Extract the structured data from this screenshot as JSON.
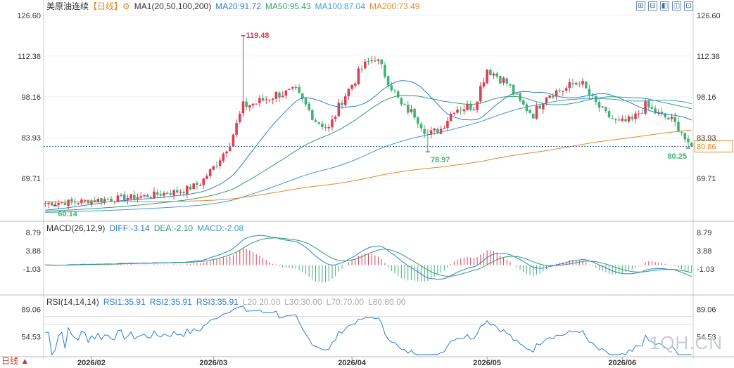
{
  "header": {
    "main": {
      "title": "美原油连续",
      "period": "【日线】",
      "gear": "⚙",
      "items": [
        {
          "label": "MA1(20,50,100,200)",
          "color": "#333333"
        },
        {
          "label": "MA20:91.72",
          "color": "#2a7fd4"
        },
        {
          "label": "MA50:95.43",
          "color": "#2e9e6a"
        },
        {
          "label": "MA100:87.04",
          "color": "#3d9bd6"
        },
        {
          "label": "MA200:73.49",
          "color": "#e08a2c"
        }
      ]
    },
    "macd": {
      "items": [
        {
          "label": "MACD(26,12,9)",
          "color": "#333333"
        },
        {
          "label": "DIFF:-3.14",
          "color": "#2a7fd4"
        },
        {
          "label": "DEA:-2.10",
          "color": "#2e9e6a"
        },
        {
          "label": "MACD:-2.08",
          "color": "#3d9bd6"
        }
      ]
    },
    "rsi": {
      "items": [
        {
          "label": "RSI(14,14,14)",
          "color": "#333333"
        },
        {
          "label": "RSI1:35.91",
          "color": "#2a7fd4"
        },
        {
          "label": "RSI2:35.91",
          "color": "#2a7fd4"
        },
        {
          "label": "RSI3:35.91",
          "color": "#2a7fd4"
        },
        {
          "label": "L20:20.00",
          "color": "#aaaaaa"
        },
        {
          "label": "L30:30.00",
          "color": "#aaaaaa"
        },
        {
          "label": "L70:70.00",
          "color": "#aaaaaa"
        },
        {
          "label": "L80:80.00",
          "color": "#aaaaaa"
        }
      ]
    }
  },
  "toolbar": [
    "⊞",
    "⊟",
    "◧",
    "◫",
    "⊡"
  ],
  "footer": {
    "label": "日线 ▲"
  },
  "watermark": "1QH.CN",
  "chart_data": {
    "type": "candlestick",
    "main": {
      "ylim": [
        55.5,
        128.5
      ],
      "yticks": [
        "126.60",
        "112.38",
        "98.16",
        "83.93",
        "69.71"
      ],
      "yvalues": [
        126.6,
        112.38,
        98.16,
        83.93,
        69.71
      ],
      "current_price": "80.86",
      "current_value": 80.86,
      "annotations": [
        {
          "label": "119.48",
          "value": 119.48,
          "index": 60,
          "color": "#e03c52"
        },
        {
          "label": "78.97",
          "value": 78.97,
          "index": 116,
          "color": "#3cb371"
        },
        {
          "label": "80.25",
          "value": 80.25,
          "index": 195,
          "color": "#3cb371"
        },
        {
          "label": "60.14",
          "value": 60.14,
          "index": 3,
          "color": "#3cb371"
        }
      ]
    },
    "macd": {
      "ylim": [
        -7.5,
        10.5
      ],
      "yticks": [
        "8.79",
        "3.88",
        "-1.03"
      ],
      "yvalues": [
        8.79,
        3.88,
        -1.03
      ]
    },
    "rsi": {
      "ylim": [
        32,
        100
      ],
      "yticks": [
        "89.06",
        "54.53"
      ],
      "yvalues": [
        89.06,
        54.53
      ]
    },
    "xticks": [
      {
        "label": "2026/02",
        "index": 14
      },
      {
        "label": "2026/03",
        "index": 51
      },
      {
        "label": "2026/04",
        "index": 93
      },
      {
        "label": "2026/05",
        "index": 134
      },
      {
        "label": "2026/06",
        "index": 175
      }
    ],
    "anchors": [
      [
        0,
        61
      ],
      [
        10,
        61.6
      ],
      [
        14,
        62
      ],
      [
        30,
        63.5
      ],
      [
        42,
        65.5
      ],
      [
        47,
        68
      ],
      [
        52,
        75
      ],
      [
        56,
        82
      ],
      [
        60,
        95
      ],
      [
        64,
        96
      ],
      [
        70,
        99
      ],
      [
        76,
        100
      ],
      [
        82,
        90
      ],
      [
        86,
        87
      ],
      [
        90,
        97
      ],
      [
        96,
        108
      ],
      [
        100,
        112
      ],
      [
        104,
        104
      ],
      [
        108,
        95
      ],
      [
        112,
        92
      ],
      [
        116,
        85
      ],
      [
        120,
        87
      ],
      [
        124,
        94
      ],
      [
        130,
        95
      ],
      [
        134,
        108
      ],
      [
        140,
        103
      ],
      [
        144,
        96
      ],
      [
        148,
        92
      ],
      [
        152,
        99
      ],
      [
        158,
        101
      ],
      [
        162,
        104
      ],
      [
        166,
        97
      ],
      [
        170,
        92
      ],
      [
        174,
        89
      ],
      [
        178,
        90
      ],
      [
        182,
        95
      ],
      [
        186,
        92
      ],
      [
        190,
        90
      ],
      [
        193,
        86
      ],
      [
        195,
        80.86
      ]
    ],
    "ma_start": {
      "ma20": 58.5,
      "ma50": 58.2,
      "ma100": 57.8,
      "ma200": 61.5
    }
  }
}
